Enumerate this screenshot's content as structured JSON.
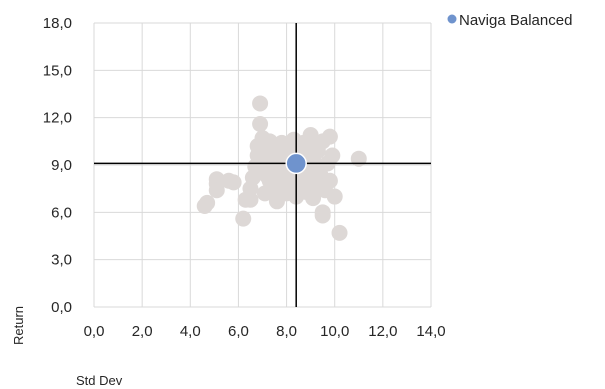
{
  "chart_data": {
    "type": "scatter",
    "title": "",
    "xlabel": "Std Dev",
    "ylabel": "Return",
    "xlim": [
      0,
      14
    ],
    "ylim": [
      0,
      18
    ],
    "x_ticks": [
      "0,0",
      "2,0",
      "4,0",
      "6,0",
      "8,0",
      "10,0",
      "12,0",
      "14,0"
    ],
    "y_ticks": [
      "0,0",
      "3,0",
      "6,0",
      "9,0",
      "12,0",
      "15,0",
      "18,0"
    ],
    "x_tick_values": [
      0,
      2,
      4,
      6,
      8,
      10,
      12,
      14
    ],
    "y_tick_values": [
      0,
      3,
      6,
      9,
      12,
      15,
      18
    ],
    "grid": true,
    "legend_position": "top-right",
    "reference_lines": {
      "x": 8.4,
      "y": 9.1
    },
    "series": [
      {
        "name": "",
        "color": "#ddd8d6",
        "points": [
          [
            4.6,
            6.4
          ],
          [
            4.7,
            6.6
          ],
          [
            5.1,
            8.1
          ],
          [
            5.1,
            7.8
          ],
          [
            5.1,
            7.4
          ],
          [
            5.6,
            8.0
          ],
          [
            5.8,
            7.9
          ],
          [
            6.2,
            5.6
          ],
          [
            6.3,
            6.8
          ],
          [
            6.5,
            6.8
          ],
          [
            6.5,
            7.5
          ],
          [
            6.6,
            8.2
          ],
          [
            6.7,
            8.9
          ],
          [
            6.8,
            9.6
          ],
          [
            6.8,
            10.2
          ],
          [
            6.9,
            11.6
          ],
          [
            6.9,
            12.9
          ],
          [
            7.0,
            10.7
          ],
          [
            7.0,
            9.2
          ],
          [
            7.1,
            8.6
          ],
          [
            7.1,
            7.2
          ],
          [
            7.2,
            8.3
          ],
          [
            7.2,
            9.9
          ],
          [
            7.3,
            10.5
          ],
          [
            7.3,
            8.0
          ],
          [
            7.4,
            7.4
          ],
          [
            7.5,
            9.5
          ],
          [
            7.5,
            8.8
          ],
          [
            7.6,
            6.7
          ],
          [
            7.6,
            10.0
          ],
          [
            7.7,
            8.4
          ],
          [
            7.7,
            9.3
          ],
          [
            7.8,
            10.4
          ],
          [
            7.8,
            7.8
          ],
          [
            7.9,
            8.7
          ],
          [
            7.9,
            9.8
          ],
          [
            8.0,
            7.2
          ],
          [
            8.0,
            8.1
          ],
          [
            8.1,
            9.5
          ],
          [
            8.1,
            10.3
          ],
          [
            8.2,
            8.8
          ],
          [
            8.2,
            7.6
          ],
          [
            8.3,
            9.2
          ],
          [
            8.3,
            10.6
          ],
          [
            8.4,
            8.4
          ],
          [
            8.4,
            7.0
          ],
          [
            8.5,
            9.6
          ],
          [
            8.5,
            10.2
          ],
          [
            8.6,
            8.0
          ],
          [
            8.6,
            7.5
          ],
          [
            8.7,
            9.0
          ],
          [
            8.7,
            10.4
          ],
          [
            8.8,
            8.6
          ],
          [
            8.8,
            7.3
          ],
          [
            8.9,
            9.8
          ],
          [
            8.9,
            7.9
          ],
          [
            9.0,
            10.9
          ],
          [
            9.0,
            8.2
          ],
          [
            9.1,
            9.4
          ],
          [
            9.1,
            6.9
          ],
          [
            9.2,
            10.1
          ],
          [
            9.2,
            8.7
          ],
          [
            9.3,
            7.7
          ],
          [
            9.3,
            9.9
          ],
          [
            9.4,
            8.4
          ],
          [
            9.5,
            10.5
          ],
          [
            9.5,
            5.8
          ],
          [
            9.5,
            6.0
          ],
          [
            9.6,
            7.4
          ],
          [
            9.7,
            9.1
          ],
          [
            9.8,
            10.8
          ],
          [
            9.8,
            8.0
          ],
          [
            9.9,
            9.6
          ],
          [
            10.0,
            7.0
          ],
          [
            10.2,
            4.7
          ],
          [
            11.0,
            9.4
          ]
        ]
      },
      {
        "name": "Naviga Balanced",
        "color": "#6f93cd",
        "points": [
          [
            8.4,
            9.1
          ]
        ]
      }
    ]
  }
}
